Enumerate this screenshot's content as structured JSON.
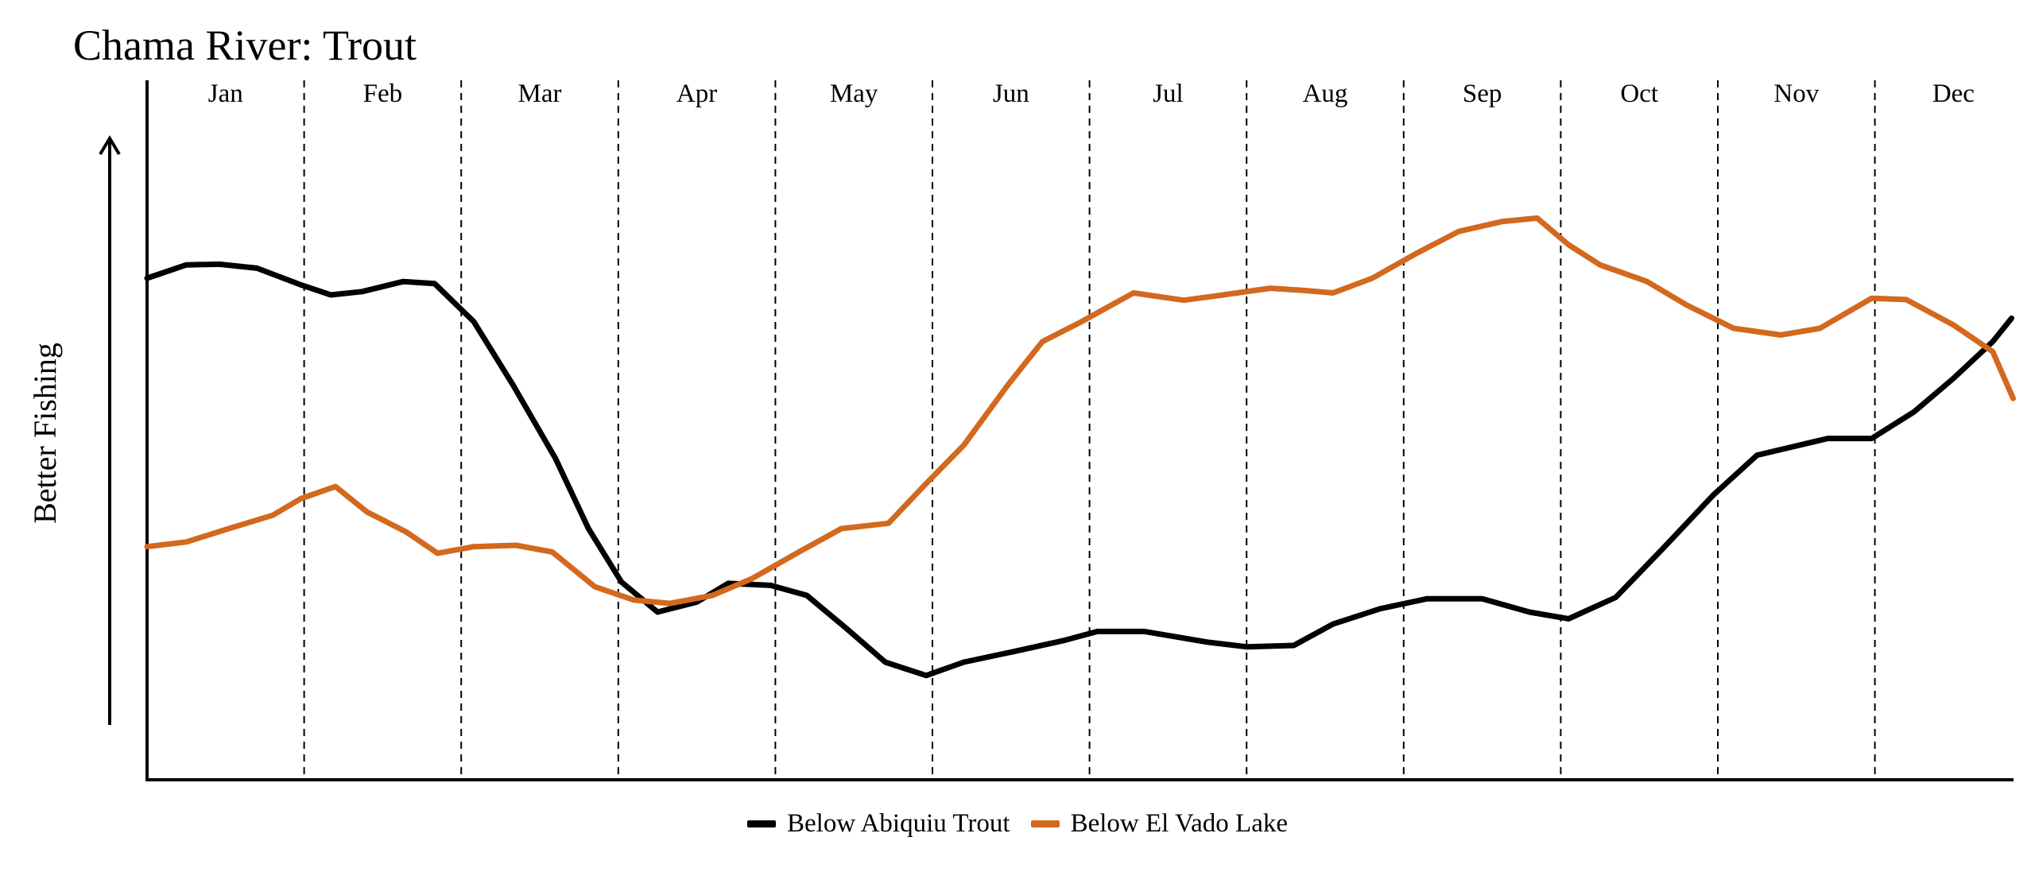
{
  "colors": {
    "abiquiu": "#000000",
    "el_vado": "#d2691e"
  },
  "chart_data": {
    "type": "line",
    "title": "Chama River: Trout",
    "xlabel": "",
    "ylabel": "Better Fishing",
    "months": [
      "Jan",
      "Feb",
      "Mar",
      "Apr",
      "May",
      "Jun",
      "Jul",
      "Aug",
      "Sep",
      "Oct",
      "Nov",
      "Dec"
    ],
    "x_range": [
      0,
      12
    ],
    "ylim": [
      0,
      1
    ],
    "grid": "vertical dashed lines at month boundaries",
    "legend_position": "bottom-center",
    "y_ticks": "none (arrow indicates direction of better fishing)",
    "series": [
      {
        "name": "Below Abiquiu Trout",
        "color": "#000000",
        "x": [
          0,
          0.25,
          0.46,
          0.7,
          0.98,
          1.17,
          1.37,
          1.63,
          1.83,
          2.08,
          2.33,
          2.6,
          2.81,
          3.02,
          3.25,
          3.5,
          3.7,
          3.97,
          4.2,
          4.45,
          4.7,
          4.96,
          5.2,
          5.5,
          5.83,
          6.05,
          6.35,
          6.75,
          7,
          7.3,
          7.55,
          7.85,
          8.15,
          8.5,
          8.8,
          9.05,
          9.35,
          9.65,
          9.97,
          10.25,
          10.7,
          10.98,
          11.25,
          11.5,
          11.75,
          11.87
        ],
        "y": [
          0.75,
          0.77,
          0.771,
          0.765,
          0.74,
          0.725,
          0.73,
          0.745,
          0.742,
          0.685,
          0.59,
          0.48,
          0.375,
          0.295,
          0.25,
          0.265,
          0.293,
          0.29,
          0.275,
          0.226,
          0.175,
          0.155,
          0.175,
          0.19,
          0.207,
          0.221,
          0.221,
          0.205,
          0.198,
          0.2,
          0.232,
          0.255,
          0.27,
          0.27,
          0.25,
          0.24,
          0.272,
          0.345,
          0.425,
          0.485,
          0.51,
          0.51,
          0.55,
          0.6,
          0.655,
          0.69
        ]
      },
      {
        "name": "Below El Vado Lake",
        "color": "#d2691e",
        "x": [
          0,
          0.25,
          0.52,
          0.8,
          0.98,
          1.2,
          1.4,
          1.65,
          1.85,
          2.08,
          2.35,
          2.58,
          2.85,
          3.1,
          3.33,
          3.6,
          3.85,
          4.15,
          4.42,
          4.72,
          4.95,
          5.2,
          5.48,
          5.7,
          5.95,
          6.28,
          6.6,
          6.85,
          7.15,
          7.35,
          7.55,
          7.8,
          8.08,
          8.35,
          8.63,
          8.85,
          9.05,
          9.25,
          9.55,
          9.8,
          10.1,
          10.4,
          10.65,
          10.98,
          11.2,
          11.5,
          11.75,
          11.88
        ],
        "y": [
          0.348,
          0.355,
          0.375,
          0.395,
          0.42,
          0.438,
          0.4,
          0.37,
          0.338,
          0.348,
          0.35,
          0.34,
          0.288,
          0.268,
          0.263,
          0.275,
          0.3,
          0.34,
          0.375,
          0.383,
          0.44,
          0.5,
          0.59,
          0.655,
          0.685,
          0.728,
          0.717,
          0.725,
          0.735,
          0.732,
          0.728,
          0.75,
          0.787,
          0.82,
          0.835,
          0.84,
          0.8,
          0.77,
          0.745,
          0.71,
          0.675,
          0.665,
          0.675,
          0.72,
          0.718,
          0.68,
          0.64,
          0.57
        ]
      }
    ]
  }
}
